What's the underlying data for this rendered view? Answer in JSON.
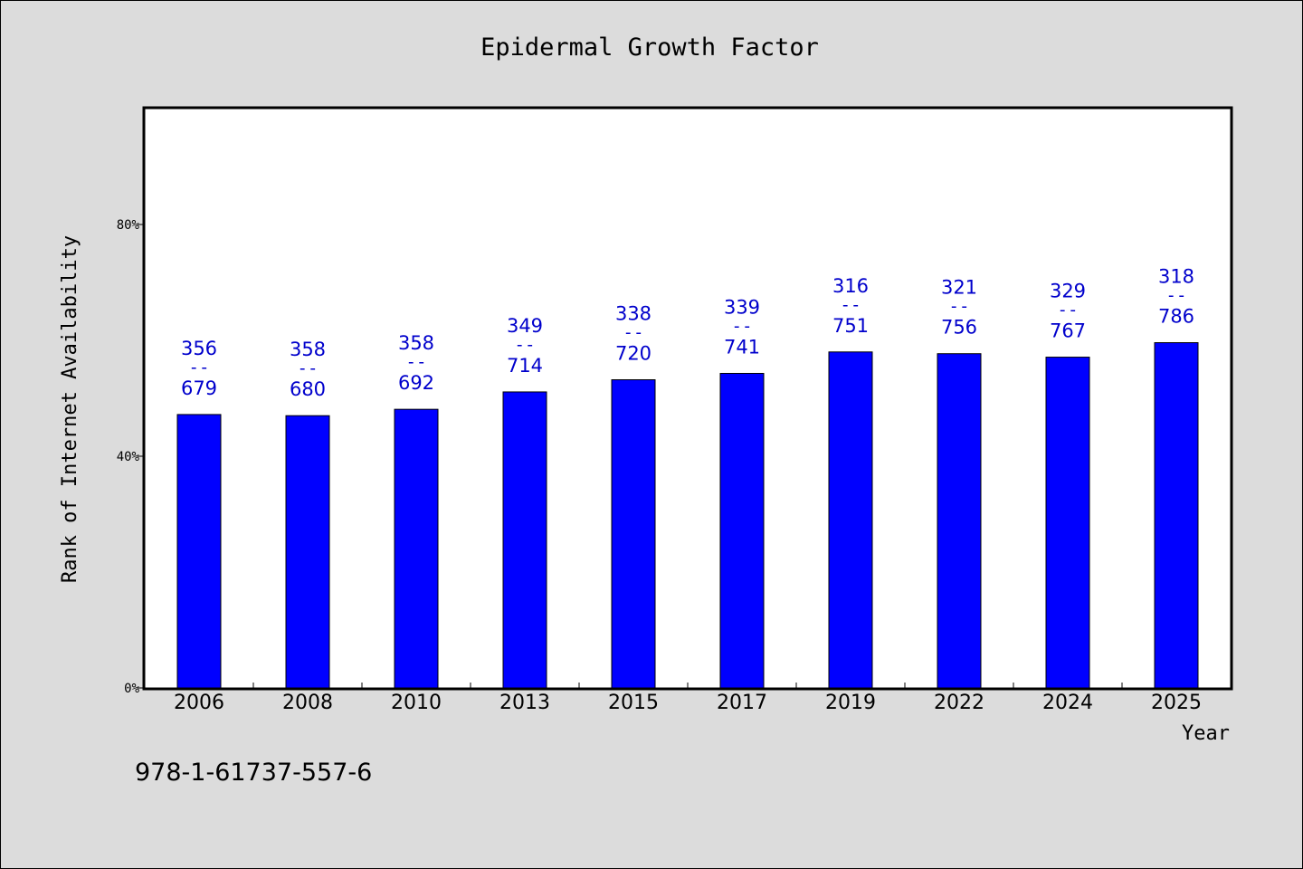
{
  "chart_data": {
    "type": "bar",
    "title": "Epidermal Growth Factor",
    "xlabel": "Year",
    "ylabel": "Rank of Internet Availability",
    "ylim": [
      0,
      100
    ],
    "y_ticks": [
      0,
      40,
      80
    ],
    "y_tick_labels": [
      "0%",
      "40%",
      "80%"
    ],
    "categories": [
      "2006",
      "2008",
      "2010",
      "2013",
      "2015",
      "2017",
      "2019",
      "2022",
      "2024",
      "2025"
    ],
    "values": [
      47.2,
      47.0,
      48.1,
      51.1,
      53.2,
      54.3,
      58.0,
      57.7,
      57.1,
      59.6
    ],
    "label_top": [
      "356",
      "358",
      "358",
      "349",
      "338",
      "339",
      "316",
      "321",
      "329",
      "318"
    ],
    "label_sep": "--",
    "label_bottom": [
      "679",
      "680",
      "692",
      "714",
      "720",
      "741",
      "751",
      "756",
      "767",
      "786"
    ],
    "bar_color": "#0000ff",
    "label_color": "#0000cc",
    "grid": false
  },
  "footer": {
    "isbn": "978-1-61737-557-6"
  }
}
